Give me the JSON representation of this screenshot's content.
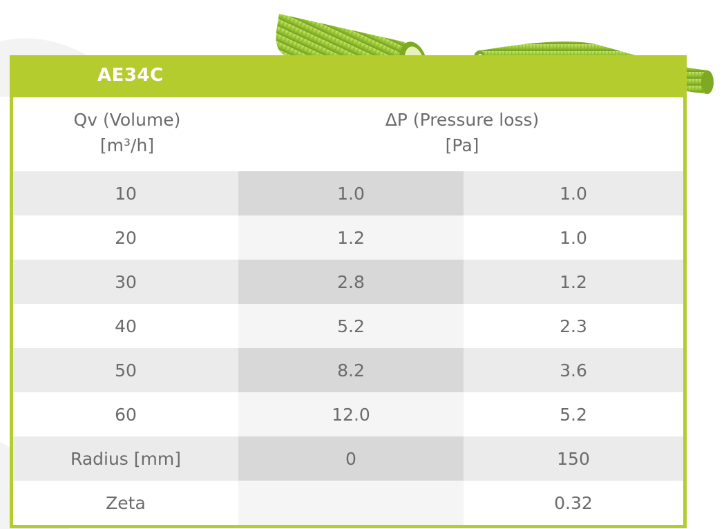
{
  "table": {
    "title": "AE34C",
    "header": {
      "col1_line1": "Qv (Volume)",
      "col1_line2": "[m³/h]",
      "col2_line1": "ΔP (Pressure loss)",
      "col2_line2": "[Pa]"
    },
    "rows": [
      {
        "c1": "10",
        "c2": "1.0",
        "c3": "1.0"
      },
      {
        "c1": "20",
        "c2": "1.2",
        "c3": "1.0"
      },
      {
        "c1": "30",
        "c2": "2.8",
        "c3": "1.2"
      },
      {
        "c1": "40",
        "c2": "5.2",
        "c3": "2.3"
      },
      {
        "c1": "50",
        "c2": "8.2",
        "c3": "3.6"
      },
      {
        "c1": "60",
        "c2": "12.0",
        "c3": "5.2"
      },
      {
        "c1": "Radius [mm]",
        "c2": "0",
        "c3": "150"
      },
      {
        "c1": "Zeta",
        "c2": "",
        "c3": "0.32"
      }
    ]
  },
  "colors": {
    "accent": "#b4cc2d",
    "pipe_green": "#9ccc36",
    "text": "#6b6b6b",
    "row_shade": "#ebebeb",
    "col_shade": "#d8d8d8"
  },
  "illustrations": [
    "straight-pipe-image",
    "bent-pipe-image"
  ]
}
